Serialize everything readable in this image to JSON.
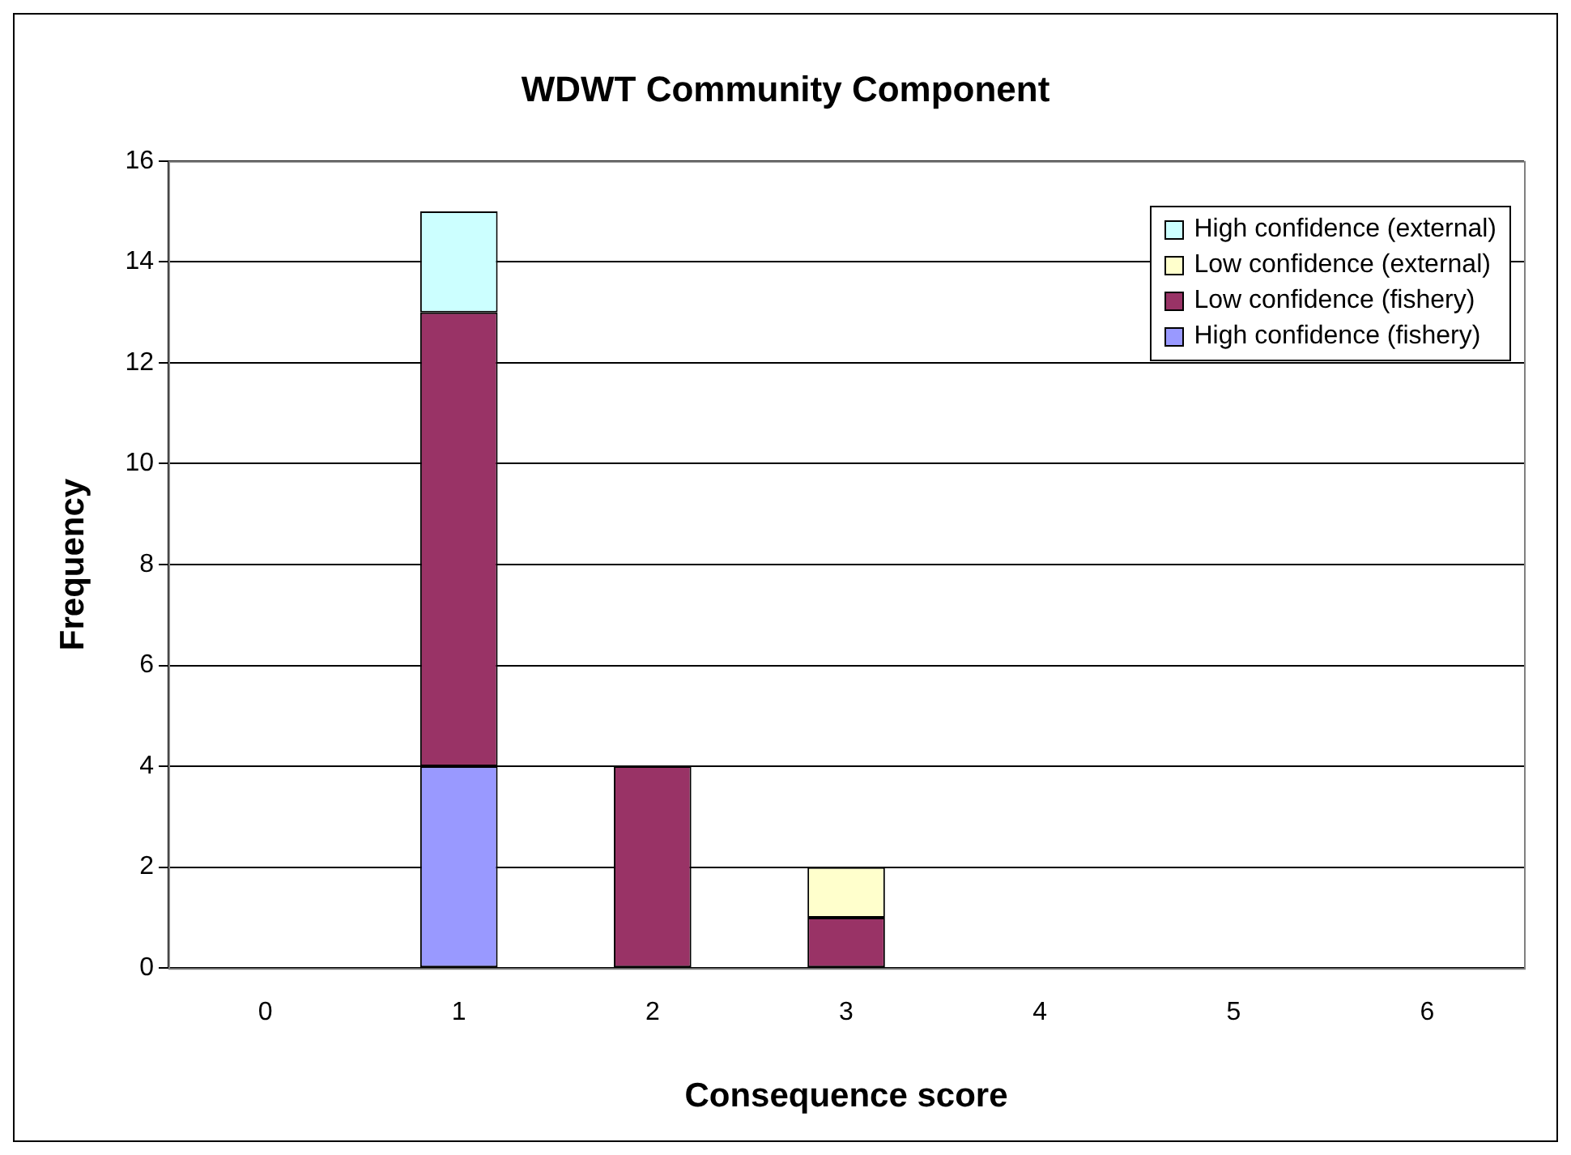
{
  "chart_data": {
    "type": "bar",
    "title": "WDWT Community Component",
    "xlabel": "Consequence score",
    "ylabel": "Frequency",
    "categories": [
      "0",
      "1",
      "2",
      "3",
      "4",
      "5",
      "6"
    ],
    "stacked": true,
    "series": [
      {
        "name": "High confidence (fishery)",
        "color": "#9999ff",
        "values": [
          0,
          4,
          0,
          0,
          0,
          0,
          0
        ]
      },
      {
        "name": "Low confidence (fishery)",
        "color": "#993366",
        "values": [
          0,
          9,
          4,
          1,
          0,
          0,
          0
        ]
      },
      {
        "name": "Low confidence (external)",
        "color": "#ffffcc",
        "values": [
          0,
          0,
          0,
          1,
          0,
          0,
          0
        ]
      },
      {
        "name": "High confidence (external)",
        "color": "#ccffff",
        "values": [
          0,
          2,
          0,
          0,
          0,
          0,
          0
        ]
      }
    ],
    "ylim": [
      0,
      16
    ],
    "yticks": [
      0,
      2,
      4,
      6,
      8,
      10,
      12,
      14,
      16
    ],
    "grid": "y",
    "legend": "top right"
  }
}
